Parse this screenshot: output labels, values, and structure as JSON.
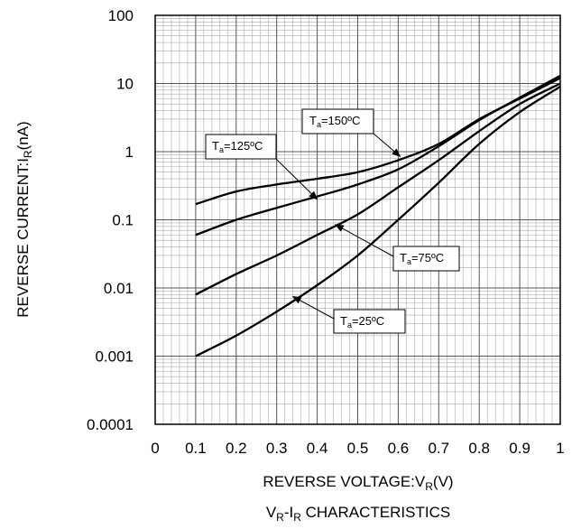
{
  "chart_data": {
    "type": "line",
    "title": "V_R-I_R CHARACTERISTICS",
    "title_parts": {
      "pre": "V",
      "sub1": "R",
      "mid": "-I",
      "sub2": "R",
      "post": " CHARACTERISTICS"
    },
    "xlabel": "REVERSE VOLTAGE:V_R(V)",
    "xlabel_parts": {
      "pre": "REVERSE VOLTAGE:V",
      "sub": "R",
      "post": "(V)"
    },
    "ylabel": "REVERSE CURRENT:I_R(nA)",
    "ylabel_parts": {
      "pre": "REVERSE CURRENT:I",
      "sub": "R",
      "post": "(nA)"
    },
    "xlim": [
      0,
      1
    ],
    "ylim": [
      0.0001,
      100
    ],
    "yscale": "log",
    "grid": true,
    "x_ticks": [
      "0",
      "0.1",
      "0.2",
      "0.3",
      "0.4",
      "0.5",
      "0.6",
      "0.7",
      "0.8",
      "0.9",
      "1"
    ],
    "y_ticks": [
      "0.0001",
      "0.001",
      "0.01",
      "0.1",
      "1",
      "10",
      "100"
    ],
    "x": [
      0.1,
      0.2,
      0.3,
      0.4,
      0.5,
      0.6,
      0.7,
      0.8,
      0.9,
      1.0
    ],
    "series": [
      {
        "name": "T_a=150ºC",
        "label_parts": {
          "pre": "T",
          "sub": "a",
          "post": "=150ºC"
        },
        "values": [
          0.17,
          0.26,
          0.33,
          0.4,
          0.5,
          0.75,
          1.3,
          3,
          6,
          12
        ]
      },
      {
        "name": "T_a=125ºC",
        "label_parts": {
          "pre": "T",
          "sub": "a",
          "post": "=125ºC"
        },
        "values": [
          0.06,
          0.1,
          0.15,
          0.22,
          0.33,
          0.55,
          1.2,
          2.9,
          6.2,
          13
        ]
      },
      {
        "name": "T_a=75ºC",
        "label_parts": {
          "pre": "T",
          "sub": "a",
          "post": "=75ºC"
        },
        "values": [
          0.008,
          0.016,
          0.03,
          0.06,
          0.12,
          0.3,
          0.75,
          2,
          5,
          10
        ]
      },
      {
        "name": "T_a=25ºC",
        "label_parts": {
          "pre": "T",
          "sub": "a",
          "post": "=25ºC"
        },
        "values": [
          0.001,
          0.002,
          0.0045,
          0.011,
          0.03,
          0.1,
          0.35,
          1.3,
          3.8,
          9
        ]
      }
    ],
    "annotations": [
      {
        "series": 0,
        "text_parts": {
          "pre": "T",
          "sub": "a",
          "post": "=150ºC"
        },
        "point": [
          0.605,
          0.85
        ]
      },
      {
        "series": 1,
        "text_parts": {
          "pre": "T",
          "sub": "a",
          "post": "=125ºC"
        },
        "point": [
          0.4,
          0.2
        ]
      },
      {
        "series": 2,
        "text_parts": {
          "pre": "T",
          "sub": "a",
          "post": "=75ºC"
        },
        "point": [
          0.445,
          0.085
        ]
      },
      {
        "series": 3,
        "text_parts": {
          "pre": "T",
          "sub": "a",
          "post": "=25ºC"
        },
        "point": [
          0.34,
          0.0075
        ]
      }
    ]
  }
}
